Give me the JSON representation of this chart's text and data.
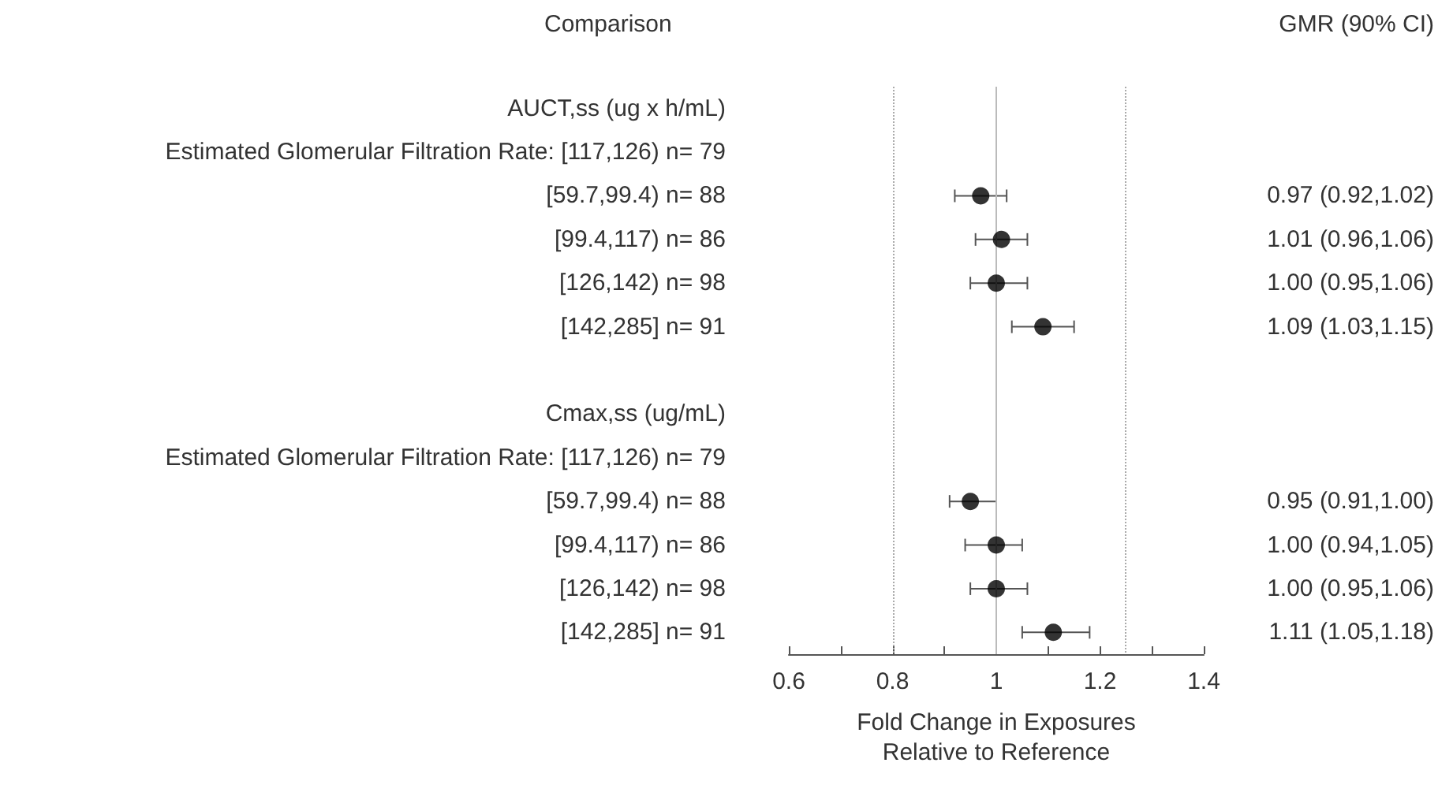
{
  "chart_data": {
    "type": "scatter",
    "orientation": "horizontal",
    "marker": "circle",
    "color": "#000000",
    "annotations": [
      "Comparison",
      "GMR (90% CI)"
    ],
    "xlabel": "Fold Change in Exposures\nRelative to Reference",
    "categories": [
      "AUCT,ss (ug x h/mL)",
      "Estimated Glomerular Filtration Rate: [117,126) n= 79",
      "[59.7,99.4) n= 88",
      "[99.4,117) n= 86",
      "[126,142) n= 98",
      "[142,285] n= 91",
      null,
      "Cmax,ss (ug/mL)",
      "Estimated Glomerular Filtration Rate: [117,126) n= 79",
      "[59.7,99.4) n= 88",
      "[99.4,117) n= 86",
      "[126,142) n= 98",
      "[142,285] n= 91"
    ],
    "values": [
      null,
      null,
      0.97,
      1.01,
      1.0,
      1.09,
      null,
      null,
      null,
      0.95,
      1.0,
      1.0,
      1.11
    ],
    "errors": [
      null,
      null,
      [
        0.92,
        1.02
      ],
      [
        0.96,
        1.06
      ],
      [
        0.95,
        1.06
      ],
      [
        1.03,
        1.15
      ],
      null,
      null,
      null,
      [
        0.91,
        1.0
      ],
      [
        0.94,
        1.05
      ],
      [
        0.95,
        1.06
      ],
      [
        1.05,
        1.18
      ]
    ],
    "value_labels": [
      null,
      null,
      "0.97 (0.92,1.02)",
      "1.01 (0.96,1.06)",
      "1.00 (0.95,1.06)",
      "1.09 (1.03,1.15)",
      null,
      null,
      null,
      "0.95 (0.91,1.00)",
      "1.00 (0.94,1.05)",
      "1.00 (0.95,1.06)",
      "1.11 (1.05,1.18)"
    ],
    "xlim": [
      0.6,
      1.4
    ],
    "xticks": [
      0.6,
      {
        "value": 0.7,
        "label": null
      },
      0.8,
      {
        "value": 0.9,
        "label": null
      },
      1,
      {
        "value": 1.1,
        "label": null
      },
      1.2,
      {
        "value": 1.3,
        "label": null
      },
      1.4
    ],
    "ref_lines": [
      {
        "axis": "x",
        "value": 0.8,
        "line_style": "dotted",
        "color": "#aaaaaa"
      },
      {
        "axis": "x",
        "value": 1,
        "line_style": "solid",
        "color": "#bbbbbb"
      },
      {
        "axis": "x",
        "value": 1.25,
        "line_style": "dotted",
        "color": "#aaaaaa"
      }
    ],
    "grid": false
  }
}
